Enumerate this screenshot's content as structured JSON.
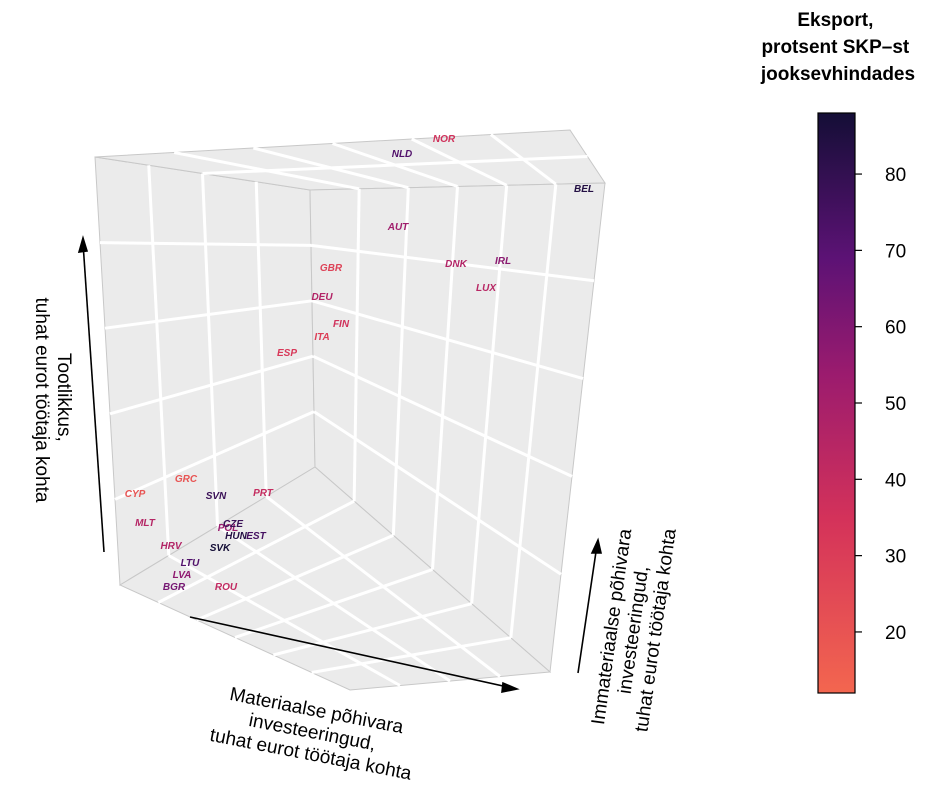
{
  "chart_data": {
    "type": "scatter",
    "dimensions": 3,
    "title": "",
    "xlabel": [
      "Materiaalse põhivara",
      "investeeringud,",
      "tuhat eurot töötaja kohta"
    ],
    "ylabel": [
      "Immateriaalse põhivara",
      "investeeringud,",
      "tuhat eurot töötaja kohta"
    ],
    "zlabel": [
      "Tootlikkus,",
      "tuhat eurot töötaja kohta"
    ],
    "color_label": [
      "Eksport,",
      "protsent SKP–st",
      "jooksevhindades"
    ],
    "color_ticks": [
      "20",
      "30",
      "40",
      "50",
      "60",
      "70",
      "80"
    ],
    "color_range": [
      12,
      88
    ],
    "colors": {
      "low": "#f3664f",
      "mid": "#c22a74",
      "high": "#140e36",
      "pane": "#ebebeb",
      "grid": "#ffffff"
    },
    "grid": true,
    "legend": "right",
    "points": [
      {
        "label": "NOR",
        "export": 36
      },
      {
        "label": "NLD",
        "export": 72
      },
      {
        "label": "BEL",
        "export": 84
      },
      {
        "label": "AUT",
        "export": 52
      },
      {
        "label": "DNK",
        "export": 46
      },
      {
        "label": "IRL",
        "export": 58
      },
      {
        "label": "LUX",
        "export": 44
      },
      {
        "label": "GBR",
        "export": 28
      },
      {
        "label": "DEU",
        "export": 46
      },
      {
        "label": "FIN",
        "export": 36
      },
      {
        "label": "ITA",
        "export": 29
      },
      {
        "label": "ESP",
        "export": 32
      },
      {
        "label": "CYP",
        "export": 20
      },
      {
        "label": "GRC",
        "export": 20
      },
      {
        "label": "SVN",
        "export": 78
      },
      {
        "label": "PRT",
        "export": 40
      },
      {
        "label": "MLT",
        "export": 45
      },
      {
        "label": "POL",
        "export": 54
      },
      {
        "label": "CZE",
        "export": 78
      },
      {
        "label": "HUN",
        "export": 84
      },
      {
        "label": "EST",
        "export": 75
      },
      {
        "label": "HRV",
        "export": 46
      },
      {
        "label": "SVK",
        "export": 88
      },
      {
        "label": "LTU",
        "export": 72
      },
      {
        "label": "LVA",
        "export": 57
      },
      {
        "label": "BGR",
        "export": 63
      },
      {
        "label": "ROU",
        "export": 41
      }
    ]
  }
}
